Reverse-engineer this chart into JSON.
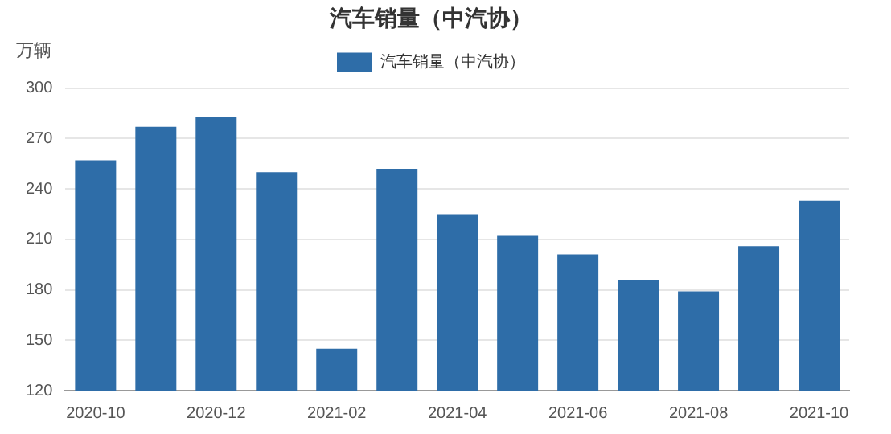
{
  "chart_data": {
    "type": "bar",
    "title": "汽车销量（中汽协）",
    "ylabel": "万辆",
    "categories": [
      "2020-10",
      null,
      "2020-12",
      null,
      "2021-02",
      null,
      "2021-04",
      null,
      "2021-06",
      null,
      "2021-08",
      null,
      "2021-10"
    ],
    "series": [
      {
        "name": "汽车销量（中汽协）",
        "color": "#2e6da8",
        "values": [
          257,
          277,
          283,
          250,
          145,
          252,
          225,
          212,
          201,
          186,
          179,
          206,
          233
        ]
      }
    ],
    "ylim": [
      120,
      300
    ],
    "yticks": [
      120,
      150,
      180,
      210,
      240,
      270,
      300
    ],
    "grid": "y",
    "legend": "top"
  }
}
